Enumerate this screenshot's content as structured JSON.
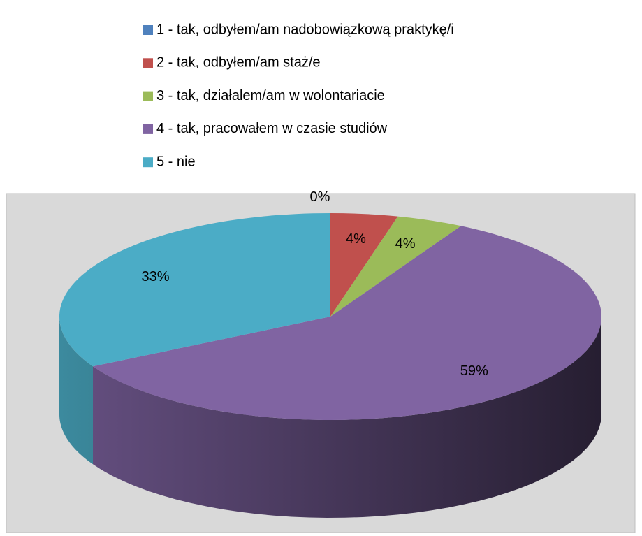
{
  "chart_data": {
    "type": "pie3d",
    "categories": [
      "1 - tak, odbyłem/am nadobowiązkową praktykę/i",
      "2 - tak, odbyłem/am staż/e",
      "3 - tak, działalem/am w wolontariacie",
      "4 - tak, pracowałem w czasie studiów",
      "5 - nie"
    ],
    "values": [
      0,
      4,
      4,
      59,
      33
    ],
    "value_labels": [
      "0%",
      "4%",
      "4%",
      "59%",
      "33%"
    ],
    "colors": [
      "#4f81bd",
      "#c0504d",
      "#9bbb59",
      "#8064a2",
      "#4bacc6"
    ],
    "legend": "top"
  }
}
